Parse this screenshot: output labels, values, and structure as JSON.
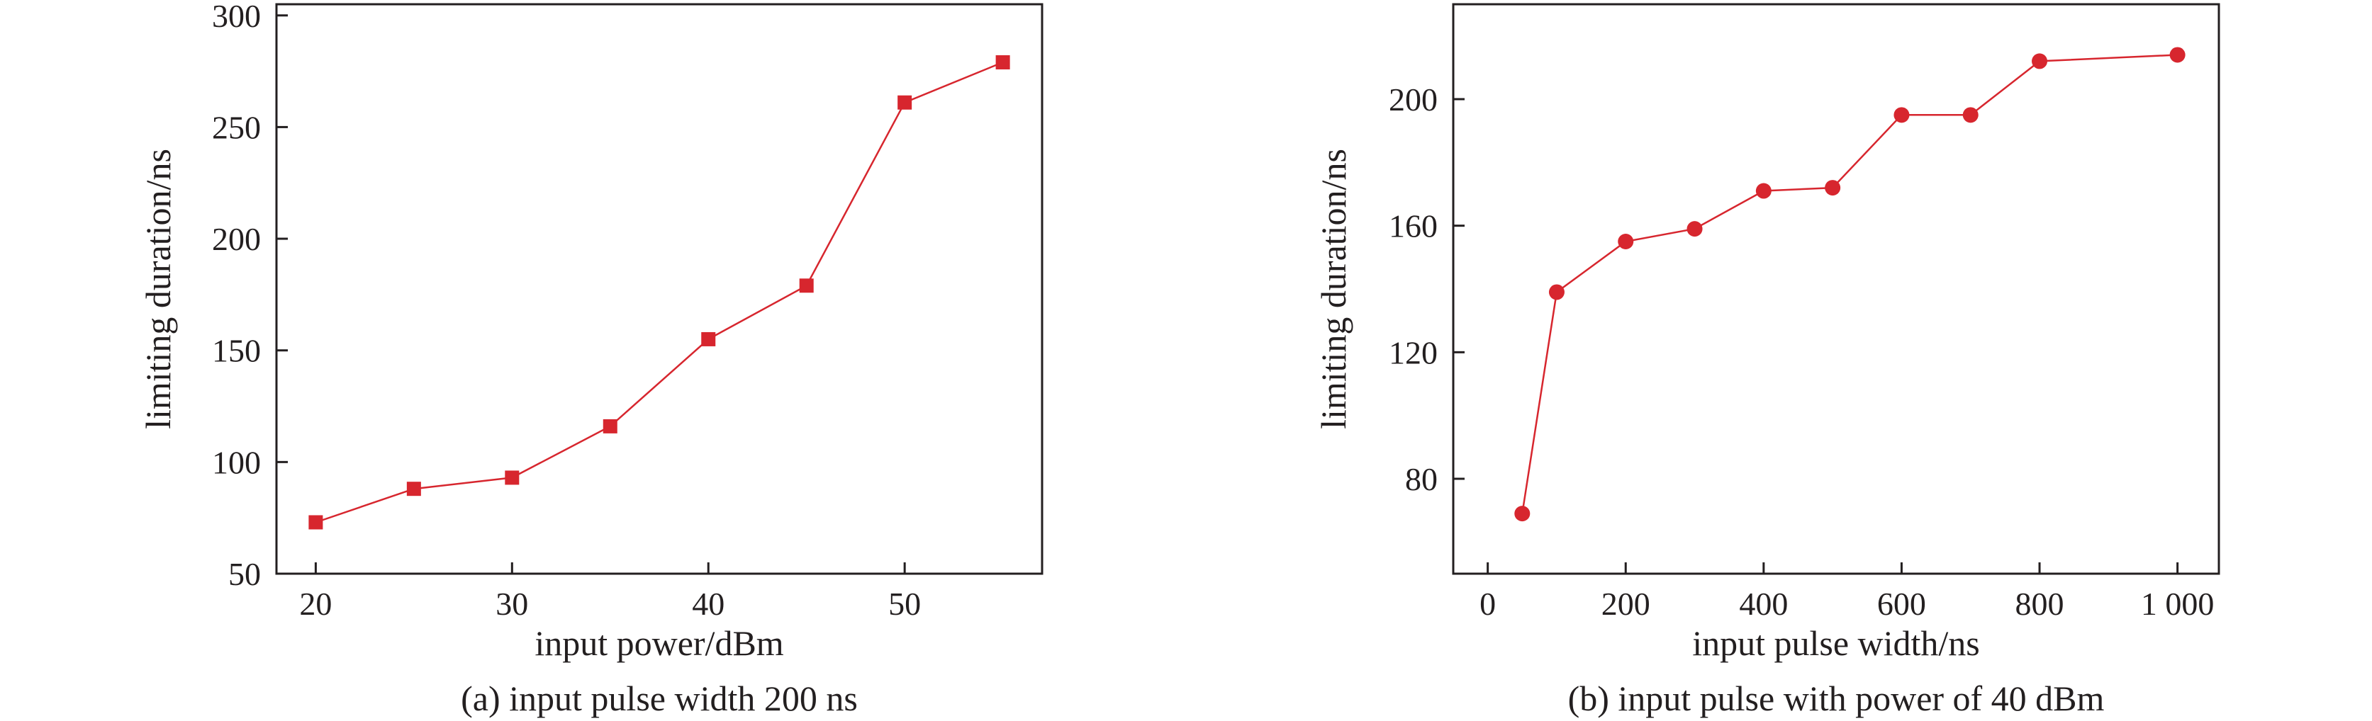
{
  "colors": {
    "series": "#d7262e",
    "axis": "#231f20"
  },
  "chart_data": [
    {
      "type": "line",
      "marker": "square",
      "caption": "(a) input pulse width 200 ns",
      "xlabel": "input power/dBm",
      "ylabel": "limiting duration/ns",
      "xlim": [
        18,
        57
      ],
      "ylim": [
        50,
        305
      ],
      "xticks": [
        20,
        30,
        40,
        50
      ],
      "xtick_labels": [
        "20",
        "30",
        "40",
        "50"
      ],
      "yticks": [
        50,
        100,
        150,
        200,
        250,
        300
      ],
      "ytick_labels": [
        "50",
        "100",
        "150",
        "200",
        "250",
        "300"
      ],
      "grid": false,
      "series": [
        {
          "x": [
            20,
            25,
            30,
            35,
            40,
            45,
            50,
            55
          ],
          "y": [
            73,
            88,
            93,
            116,
            155,
            179,
            261,
            279
          ]
        }
      ]
    },
    {
      "type": "line",
      "marker": "circle",
      "caption": "(b) input pulse with power of 40 dBm",
      "xlabel": "input pulse width/ns",
      "ylabel": "limiting duration/ns",
      "xlim": [
        -50,
        1060
      ],
      "ylim": [
        50,
        230
      ],
      "xticks": [
        0,
        200,
        400,
        600,
        800,
        1000
      ],
      "xtick_labels": [
        "0",
        "200",
        "400",
        "600",
        "800",
        "1 000"
      ],
      "yticks": [
        80,
        120,
        160,
        200
      ],
      "ytick_labels": [
        "80",
        "120",
        "160",
        "200"
      ],
      "grid": false,
      "series": [
        {
          "x": [
            50,
            100,
            200,
            300,
            400,
            500,
            600,
            700,
            800,
            1000
          ],
          "y": [
            69,
            139,
            155,
            159,
            171,
            172,
            195,
            195,
            212,
            214
          ]
        }
      ]
    }
  ]
}
